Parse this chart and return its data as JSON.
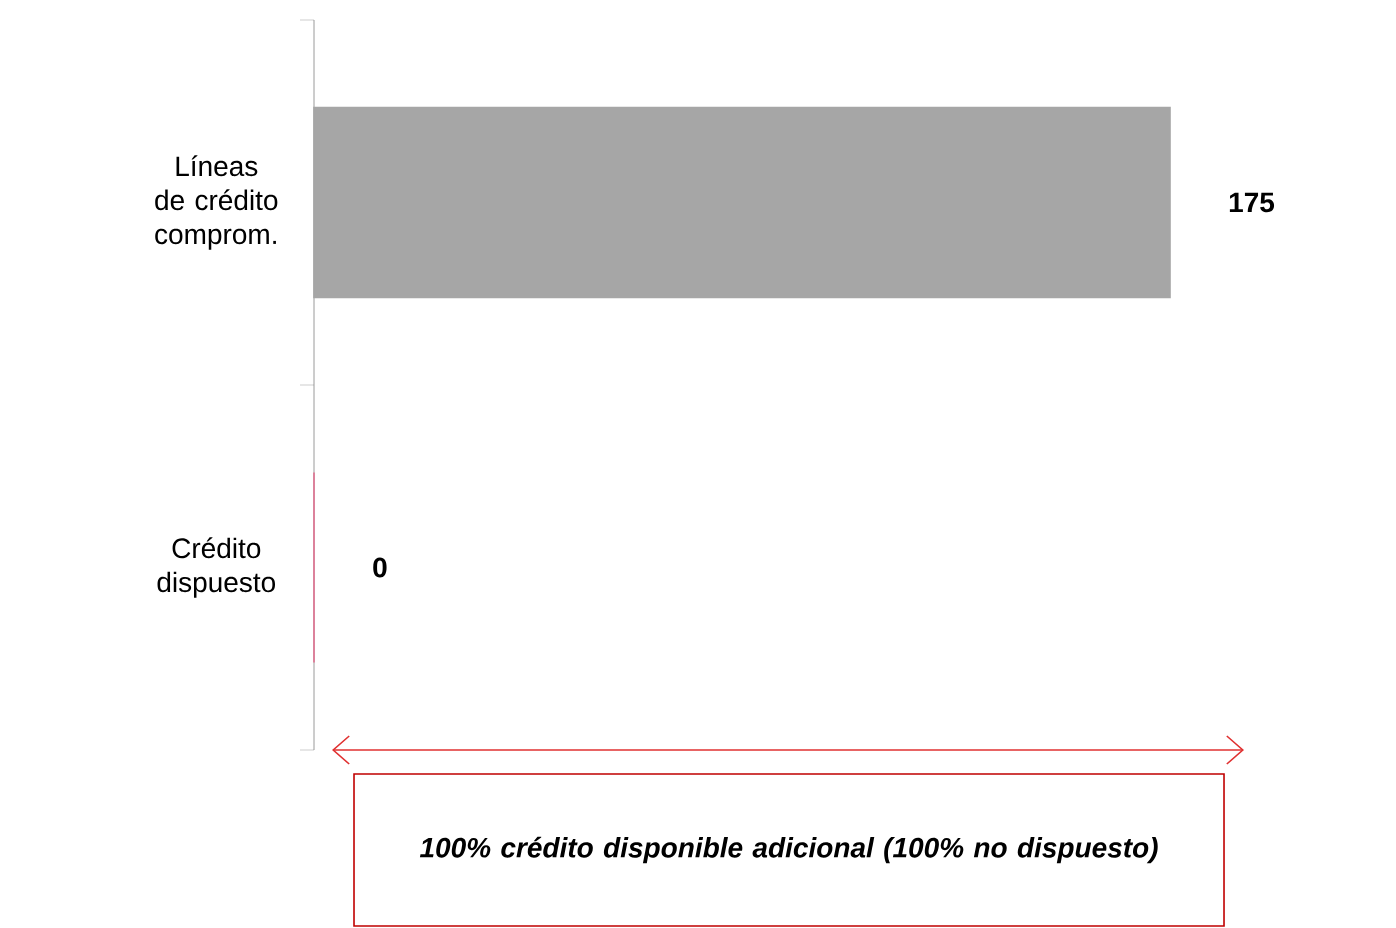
{
  "chart_data": {
    "type": "bar",
    "orientation": "horizontal",
    "categories": [
      "Líneas de crédito comprom.",
      "Crédito dispuesto"
    ],
    "values": [
      175,
      0
    ],
    "colors": [
      "#a6a6a6",
      "#e07090"
    ],
    "tick_labels": "y",
    "data_labels": true,
    "annotations": [
      "100% crédito disponible adicional (100% no dispuesto)"
    ]
  }
}
